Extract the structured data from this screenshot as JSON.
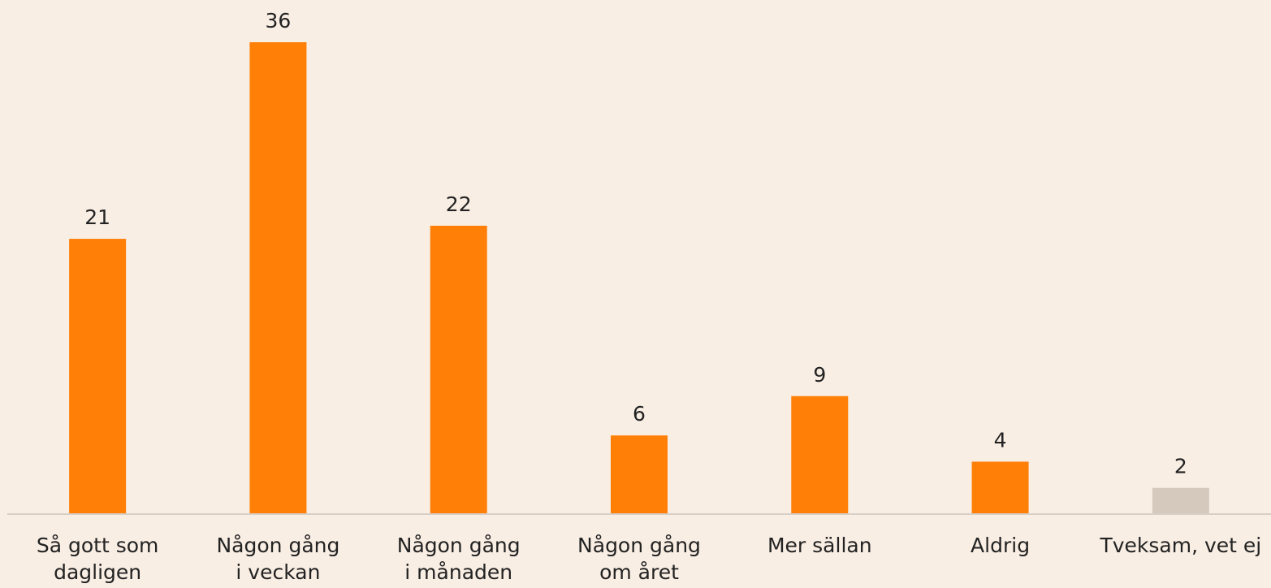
{
  "chart_data": {
    "type": "bar",
    "categories": [
      "Så gott som\ndagligen",
      "Någon gång\ni veckan",
      "Någon gång\ni månaden",
      "Någon gång\nom året",
      "Mer sällan",
      "Aldrig",
      "Tveksam, vet ej"
    ],
    "values": [
      21,
      36,
      22,
      6,
      9,
      4,
      2
    ],
    "colors": [
      "#ff7f07",
      "#ff7f07",
      "#ff7f07",
      "#ff7f07",
      "#ff7f07",
      "#ff7f07",
      "#d5c9bd"
    ]
  }
}
